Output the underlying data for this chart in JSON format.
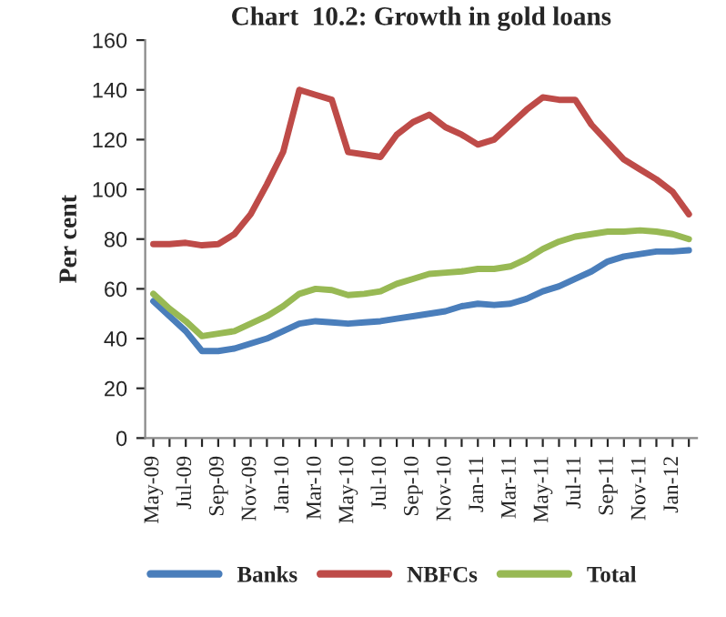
{
  "chart_data": {
    "type": "line",
    "title": "Chart  10.2: Growth in gold loans",
    "ylabel": "Per cent",
    "categories": [
      "May-09",
      null,
      "Jul-09",
      null,
      "Sep-09",
      null,
      "Nov-09",
      null,
      "Jan-10",
      null,
      "Mar-10",
      null,
      "May-10",
      null,
      "Jul-10",
      null,
      "Sep-10",
      null,
      "Nov-10",
      null,
      "Jan-11",
      null,
      "Mar-11",
      null,
      "May-11",
      null,
      "Jul-11",
      null,
      "Sep-11",
      null,
      "Nov-11",
      null,
      "Jan-12",
      null
    ],
    "series": [
      {
        "name": "Banks",
        "color": "#4a7ebb",
        "values": [
          55,
          49,
          43,
          35,
          35,
          36,
          38,
          40,
          43,
          46,
          47,
          46.5,
          46,
          46.5,
          47,
          48,
          49,
          50,
          51,
          53,
          54,
          53.5,
          54,
          56,
          59,
          61,
          64,
          67,
          71,
          73,
          74,
          75,
          75,
          75.5
        ]
      },
      {
        "name": "NBFCs",
        "color": "#be4b48",
        "values": [
          78,
          78,
          78.5,
          77.5,
          78,
          82,
          90,
          102,
          115,
          140,
          138,
          136,
          115,
          114,
          113,
          122,
          127,
          130,
          125,
          122,
          118,
          120,
          126,
          132,
          137,
          136,
          136,
          126,
          119,
          112,
          108,
          104,
          99,
          90
        ]
      },
      {
        "name": "Total",
        "color": "#98b954",
        "values": [
          58,
          52,
          47,
          41,
          42,
          43,
          46,
          49,
          53,
          58,
          60,
          59.5,
          57.5,
          58,
          59,
          62,
          64,
          66,
          66.5,
          67,
          68,
          68,
          69,
          72,
          76,
          79,
          81,
          82,
          83,
          83,
          83.5,
          83,
          82,
          80
        ]
      }
    ],
    "ylim": [
      0,
      160
    ],
    "yticks": [
      0,
      20,
      40,
      60,
      80,
      100,
      120,
      140,
      160
    ],
    "grid": false,
    "legend": "bottom",
    "marker": "none",
    "line_style": "solid"
  }
}
